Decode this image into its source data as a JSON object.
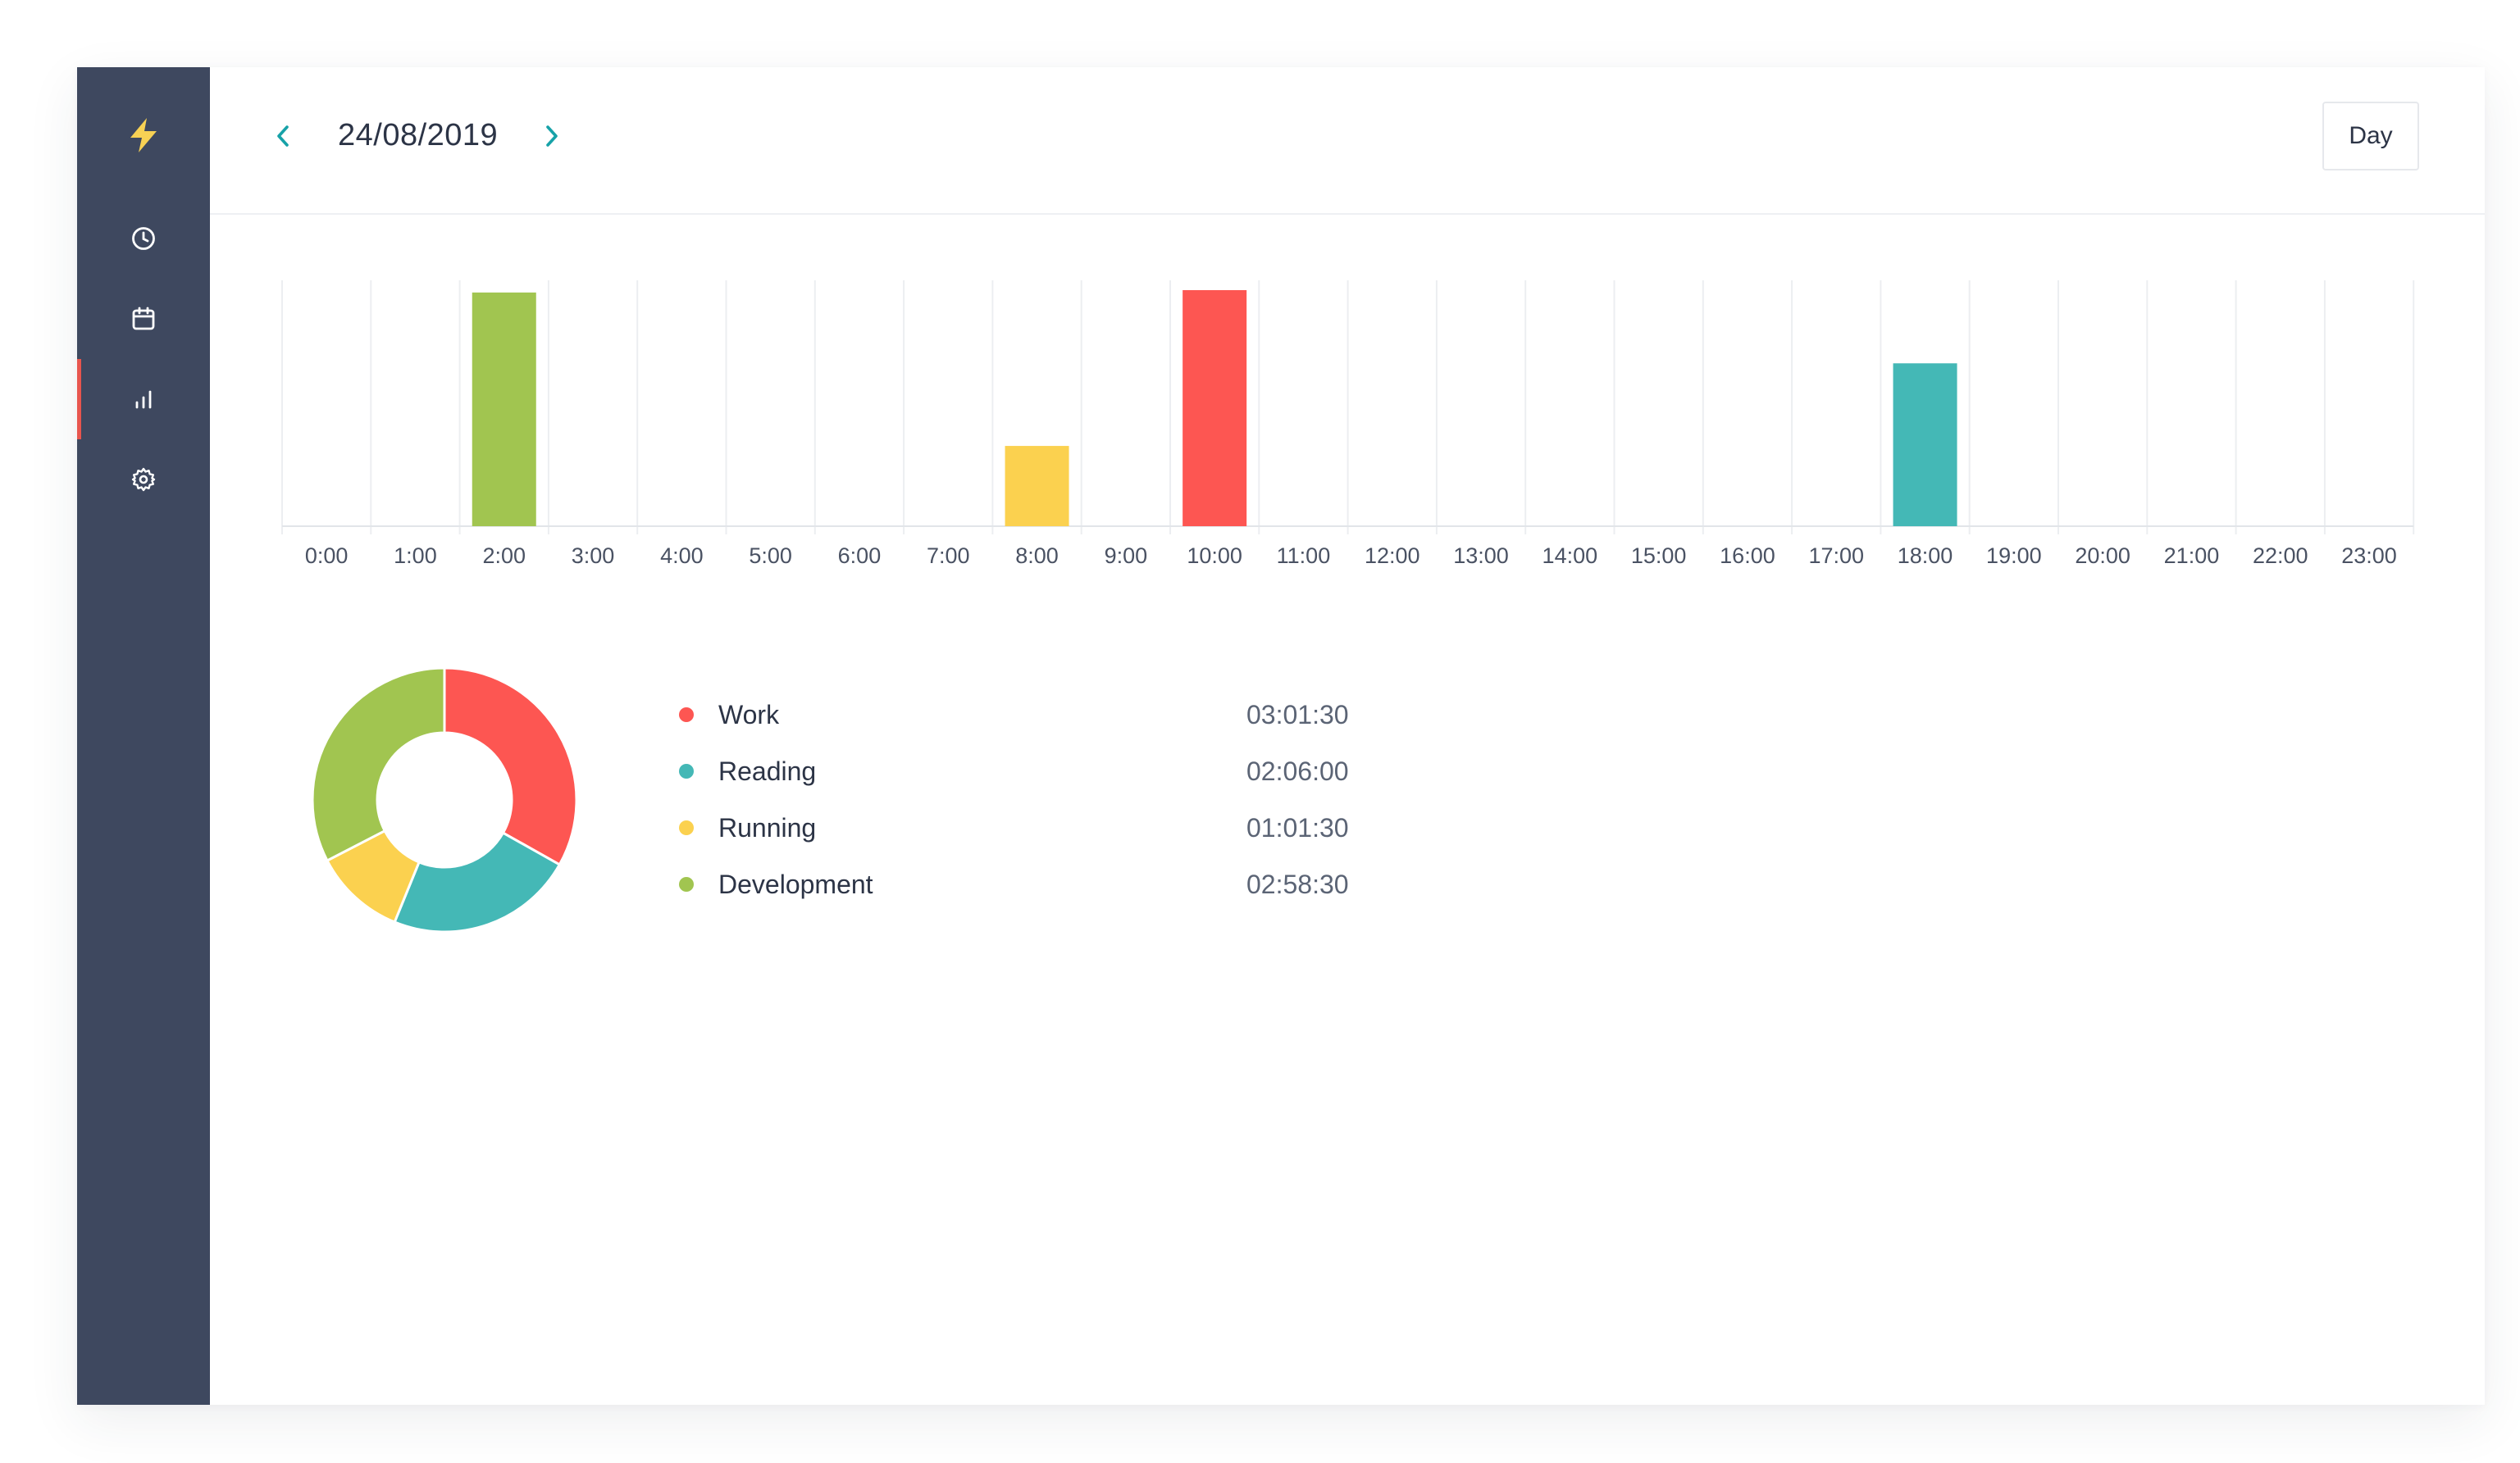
{
  "header": {
    "date": "24/08/2019",
    "view_mode": "Day",
    "prev_icon": "chevron-left-icon",
    "next_icon": "chevron-right-icon"
  },
  "sidebar": {
    "logo_icon": "lightning-bolt-icon",
    "items": [
      {
        "icon": "clock-icon",
        "name": "timer",
        "active": false
      },
      {
        "icon": "calendar-icon",
        "name": "calendar",
        "active": false
      },
      {
        "icon": "bar-chart-icon",
        "name": "reports",
        "active": true
      },
      {
        "icon": "gear-icon",
        "name": "settings",
        "active": false
      }
    ]
  },
  "colors": {
    "sidebar_bg": "#3e485f",
    "accent": "#17a2a8",
    "active_marker": "#e8554e",
    "logo": "#f7d154"
  },
  "chart_data": [
    {
      "type": "bar",
      "categories": [
        "0:00",
        "1:00",
        "2:00",
        "3:00",
        "4:00",
        "5:00",
        "6:00",
        "7:00",
        "8:00",
        "9:00",
        "10:00",
        "11:00",
        "12:00",
        "13:00",
        "14:00",
        "15:00",
        "16:00",
        "17:00",
        "18:00",
        "19:00",
        "20:00",
        "21:00",
        "22:00",
        "23:00"
      ],
      "values": [
        0,
        0,
        0.99,
        0,
        0,
        0,
        0,
        0,
        0.34,
        0,
        1.0,
        0,
        0,
        0,
        0,
        0,
        0,
        0,
        0.69,
        0,
        0,
        0,
        0,
        0
      ],
      "bar_colors": [
        "",
        "",
        "#a1c550",
        "",
        "",
        "",
        "",
        "",
        "#fbd14f",
        "",
        "#fd5652",
        "",
        "",
        "",
        "",
        "",
        "",
        "",
        "#44b8b6",
        "",
        "",
        "",
        "",
        ""
      ],
      "grid": true
    },
    {
      "type": "pie",
      "style": "donut",
      "labels": [
        "Work",
        "Reading",
        "Running",
        "Development"
      ],
      "values": [
        "03:01:30",
        "02:06:00",
        "01:01:30",
        "02:58:30"
      ],
      "seconds": [
        10890,
        7560,
        3690,
        10710
      ],
      "colors": [
        "#fd5652",
        "#44b8b6",
        "#fbd14f",
        "#a1c550"
      ]
    }
  ]
}
